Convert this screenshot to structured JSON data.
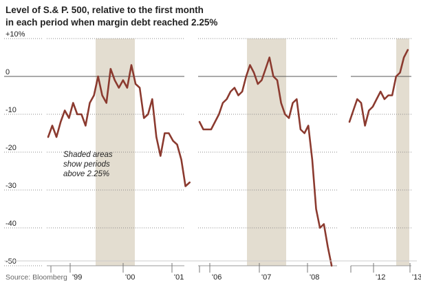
{
  "title": {
    "line1": "Level of S.& P. 500, relative to the first month",
    "line2": "in each period when margin debt reached 2.25%"
  },
  "source": "Source: Bloomberg",
  "note": [
    "Shaded areas",
    "show periods",
    "above 2.25%"
  ],
  "colors": {
    "line": "#8b3a2f",
    "shade": "#e3ddd0",
    "grid": "#888888",
    "zero": "#555555"
  },
  "chart_data": {
    "type": "line",
    "ylabel": "",
    "ylim": [
      -50,
      10
    ],
    "y_ticks": [
      {
        "value": 10,
        "label": "+10%"
      },
      {
        "value": 0,
        "label": "0"
      },
      {
        "value": -10,
        "label": "-10"
      },
      {
        "value": -20,
        "label": "-20"
      },
      {
        "value": -30,
        "label": "-30"
      },
      {
        "value": -40,
        "label": "-40"
      },
      {
        "value": -50,
        "label": "-50"
      }
    ],
    "grid": true,
    "panels": [
      {
        "x_ticks": [
          "'99",
          "'00",
          "'01"
        ],
        "shaded": "1999-09 to 2000-10",
        "series": [
          {
            "values": [
              -16,
              -13,
              -16,
              -12,
              -9,
              -11,
              -7,
              -10,
              -10,
              -13,
              -7,
              -5,
              0,
              -5,
              -7,
              2,
              -1,
              -3,
              -1,
              -3,
              3,
              -2,
              -3,
              -11,
              -10,
              -6,
              -16,
              -21,
              -15,
              -15,
              -17,
              -18,
              -22,
              -29,
              -28
            ]
          }
        ]
      },
      {
        "x_ticks": [
          "'06",
          "'07",
          "'08"
        ],
        "shaded": "2007-01 to 2007-12",
        "series": [
          {
            "values": [
              -12,
              -14,
              -14,
              -14,
              -12,
              -10,
              -7,
              -6,
              -4,
              -3,
              -5,
              -4,
              0,
              3,
              1,
              -2,
              -1,
              2,
              5,
              0,
              -1,
              -7,
              -10,
              -11,
              -7,
              -6,
              -14,
              -15,
              -13,
              -22,
              -35,
              -40,
              -39,
              -45,
              -50
            ]
          }
        ]
      },
      {
        "x_ticks": [
          "'12",
          "'13"
        ],
        "shaded": "2012-12 to 2013-03",
        "series": [
          {
            "values": [
              -12,
              -9,
              -6,
              -7,
              -13,
              -9,
              -8,
              -6,
              -4,
              -6,
              -5,
              -5,
              0,
              1,
              5,
              7
            ]
          }
        ]
      }
    ]
  }
}
